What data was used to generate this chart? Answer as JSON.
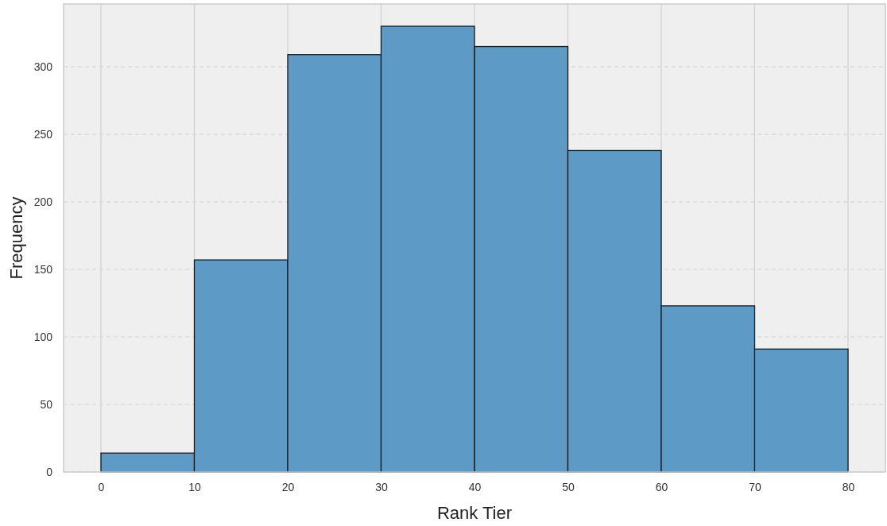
{
  "chart_data": {
    "type": "histogram",
    "xlabel": "Rank Tier",
    "ylabel": "Frequency",
    "bins": [
      0,
      10,
      20,
      30,
      40,
      50,
      60,
      70,
      80
    ],
    "values": [
      14,
      157,
      309,
      330,
      315,
      238,
      123,
      91
    ],
    "color": "#5d9ac6",
    "xlim": [
      -4,
      84
    ],
    "xticks": [
      0,
      10,
      20,
      30,
      40,
      50,
      60,
      70,
      80
    ],
    "ylim": [
      0,
      346.5
    ],
    "yticks": [
      0,
      50,
      100,
      150,
      200,
      250,
      300
    ],
    "grid": true
  }
}
